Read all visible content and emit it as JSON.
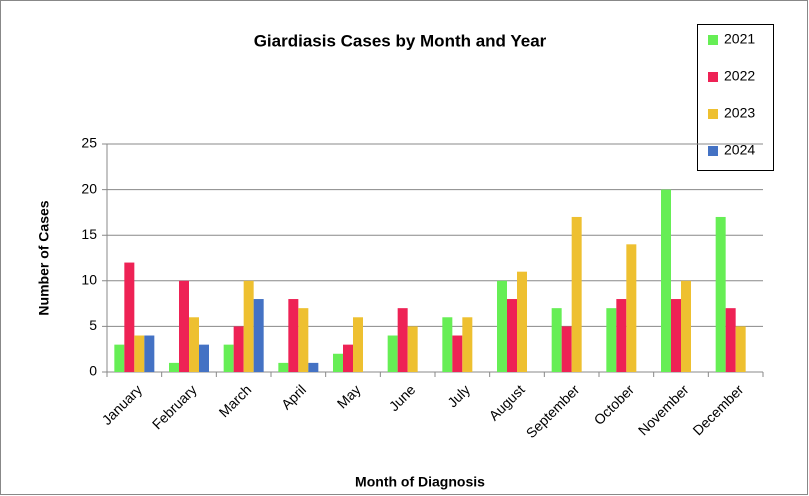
{
  "chart_data": {
    "type": "bar",
    "title": "Giardiasis Cases by Month and Year",
    "x_label": "Month of Diagnosis",
    "y_label": "Number of Cases",
    "categories": [
      "January",
      "February",
      "March",
      "April",
      "May",
      "June",
      "July",
      "August",
      "September",
      "October",
      "November",
      "December"
    ],
    "series": [
      {
        "name": "2021",
        "color": "#66ee55",
        "values": [
          3,
          1,
          3,
          1,
          2,
          4,
          6,
          10,
          7,
          7,
          20,
          17
        ]
      },
      {
        "name": "2022",
        "color": "#ee2255",
        "values": [
          12,
          10,
          5,
          8,
          3,
          7,
          4,
          8,
          5,
          8,
          8,
          7
        ]
      },
      {
        "name": "2023",
        "color": "#eec030",
        "values": [
          4,
          6,
          10,
          7,
          6,
          5,
          6,
          11,
          17,
          14,
          10,
          5
        ]
      },
      {
        "name": "2024",
        "color": "#4472c4",
        "values": [
          4,
          3,
          8,
          1,
          null,
          null,
          null,
          null,
          null,
          null,
          null,
          null
        ]
      }
    ],
    "ylim": [
      0,
      25
    ],
    "yticks": [
      0,
      5,
      10,
      15,
      20,
      25
    ],
    "grid": true,
    "legend": "right"
  }
}
